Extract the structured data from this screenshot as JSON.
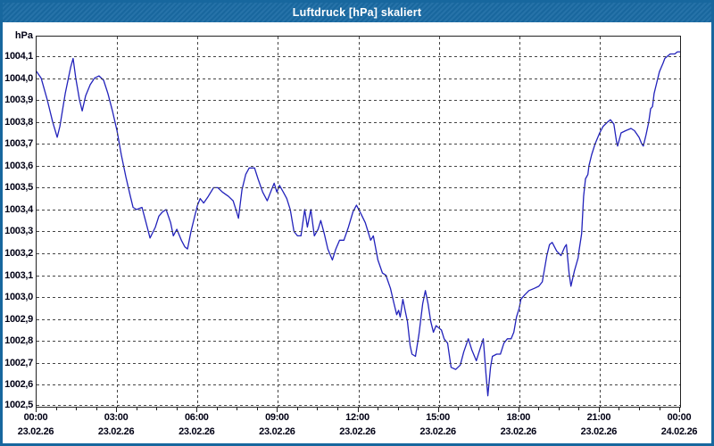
{
  "window": {
    "title": "Luftdruck [hPa] skaliert"
  },
  "colors": {
    "titlebar": "#1a6ba4",
    "window_border": "#17679e",
    "line": "#2222bb",
    "grid": "#444444",
    "text": "#000014"
  },
  "chart_data": {
    "type": "line",
    "title": "Luftdruck [hPa] skaliert",
    "ylabel": "hPa",
    "xlabel": "",
    "grid": true,
    "ylim": [
      1002.5,
      1004.19
    ],
    "xlim_hours": [
      0,
      24
    ],
    "y_ticks": [
      {
        "label": "1004,1",
        "value": 1004.1
      },
      {
        "label": "1004,0",
        "value": 1004.0
      },
      {
        "label": "1003,9",
        "value": 1003.9
      },
      {
        "label": "1003,8",
        "value": 1003.8
      },
      {
        "label": "1003,7",
        "value": 1003.7
      },
      {
        "label": "1003,6",
        "value": 1003.6
      },
      {
        "label": "1003,5",
        "value": 1003.5
      },
      {
        "label": "1003,4",
        "value": 1003.4
      },
      {
        "label": "1003,3",
        "value": 1003.3
      },
      {
        "label": "1003,2",
        "value": 1003.2
      },
      {
        "label": "1003,1",
        "value": 1003.1
      },
      {
        "label": "1003,0",
        "value": 1003.0
      },
      {
        "label": "1002,9",
        "value": 1002.9
      },
      {
        "label": "1002,8",
        "value": 1002.8
      },
      {
        "label": "1002,7",
        "value": 1002.7
      },
      {
        "label": "1002,6",
        "value": 1002.6
      },
      {
        "label": "1002,5",
        "value": 1002.5
      }
    ],
    "x_ticks": [
      {
        "time": "00:00",
        "date": "23.02.26",
        "hour": 0
      },
      {
        "time": "03:00",
        "date": "23.02.26",
        "hour": 3
      },
      {
        "time": "06:00",
        "date": "23.02.26",
        "hour": 6
      },
      {
        "time": "09:00",
        "date": "23.02.26",
        "hour": 9
      },
      {
        "time": "12:00",
        "date": "23.02.26",
        "hour": 12
      },
      {
        "time": "15:00",
        "date": "23.02.26",
        "hour": 15
      },
      {
        "time": "18:00",
        "date": "23.02.26",
        "hour": 18
      },
      {
        "time": "21:00",
        "date": "23.02.26",
        "hour": 21
      },
      {
        "time": "00:00",
        "date": "24.02.26",
        "hour": 24
      }
    ],
    "series": [
      {
        "name": "Luftdruck [hPa]",
        "color": "#2222bb",
        "points": [
          [
            0.0,
            1004.03
          ],
          [
            0.17,
            1004.0
          ],
          [
            0.4,
            1003.9
          ],
          [
            0.6,
            1003.8
          ],
          [
            0.77,
            1003.73
          ],
          [
            0.87,
            1003.78
          ],
          [
            1.07,
            1003.93
          ],
          [
            1.27,
            1004.05
          ],
          [
            1.36,
            1004.09
          ],
          [
            1.46,
            1004.0
          ],
          [
            1.6,
            1003.9
          ],
          [
            1.7,
            1003.85
          ],
          [
            1.83,
            1003.92
          ],
          [
            2.0,
            1003.97
          ],
          [
            2.16,
            1004.0
          ],
          [
            2.33,
            1004.01
          ],
          [
            2.5,
            1003.99
          ],
          [
            2.66,
            1003.93
          ],
          [
            2.83,
            1003.85
          ],
          [
            3.0,
            1003.76
          ],
          [
            3.16,
            1003.65
          ],
          [
            3.33,
            1003.55
          ],
          [
            3.5,
            1003.46
          ],
          [
            3.6,
            1003.41
          ],
          [
            3.73,
            1003.4
          ],
          [
            3.93,
            1003.41
          ],
          [
            4.06,
            1003.35
          ],
          [
            4.23,
            1003.27
          ],
          [
            4.43,
            1003.32
          ],
          [
            4.56,
            1003.37
          ],
          [
            4.7,
            1003.39
          ],
          [
            4.83,
            1003.4
          ],
          [
            5.0,
            1003.34
          ],
          [
            5.1,
            1003.28
          ],
          [
            5.23,
            1003.31
          ],
          [
            5.4,
            1003.26
          ],
          [
            5.53,
            1003.23
          ],
          [
            5.63,
            1003.22
          ],
          [
            5.76,
            1003.3
          ],
          [
            5.9,
            1003.37
          ],
          [
            6.0,
            1003.42
          ],
          [
            6.1,
            1003.45
          ],
          [
            6.23,
            1003.43
          ],
          [
            6.4,
            1003.46
          ],
          [
            6.6,
            1003.5
          ],
          [
            6.76,
            1003.5
          ],
          [
            6.93,
            1003.48
          ],
          [
            7.16,
            1003.46
          ],
          [
            7.33,
            1003.44
          ],
          [
            7.46,
            1003.39
          ],
          [
            7.53,
            1003.36
          ],
          [
            7.66,
            1003.49
          ],
          [
            7.8,
            1003.56
          ],
          [
            7.93,
            1003.59
          ],
          [
            8.13,
            1003.59
          ],
          [
            8.26,
            1003.54
          ],
          [
            8.43,
            1003.48
          ],
          [
            8.6,
            1003.44
          ],
          [
            8.76,
            1003.49
          ],
          [
            8.86,
            1003.52
          ],
          [
            8.96,
            1003.48
          ],
          [
            9.06,
            1003.51
          ],
          [
            9.2,
            1003.48
          ],
          [
            9.33,
            1003.45
          ],
          [
            9.46,
            1003.4
          ],
          [
            9.6,
            1003.3
          ],
          [
            9.73,
            1003.28
          ],
          [
            9.86,
            1003.28
          ],
          [
            10.0,
            1003.4
          ],
          [
            10.1,
            1003.32
          ],
          [
            10.23,
            1003.4
          ],
          [
            10.36,
            1003.28
          ],
          [
            10.5,
            1003.31
          ],
          [
            10.6,
            1003.35
          ],
          [
            10.73,
            1003.29
          ],
          [
            10.86,
            1003.22
          ],
          [
            11.03,
            1003.17
          ],
          [
            11.16,
            1003.22
          ],
          [
            11.3,
            1003.26
          ],
          [
            11.46,
            1003.26
          ],
          [
            11.63,
            1003.32
          ],
          [
            11.8,
            1003.39
          ],
          [
            11.93,
            1003.42
          ],
          [
            12.1,
            1003.38
          ],
          [
            12.26,
            1003.34
          ],
          [
            12.36,
            1003.3
          ],
          [
            12.46,
            1003.26
          ],
          [
            12.56,
            1003.28
          ],
          [
            12.73,
            1003.17
          ],
          [
            12.9,
            1003.11
          ],
          [
            13.03,
            1003.1
          ],
          [
            13.2,
            1003.04
          ],
          [
            13.33,
            1002.97
          ],
          [
            13.43,
            1002.92
          ],
          [
            13.5,
            1002.94
          ],
          [
            13.56,
            1002.91
          ],
          [
            13.66,
            1002.99
          ],
          [
            13.76,
            1002.93
          ],
          [
            13.83,
            1002.89
          ],
          [
            13.93,
            1002.78
          ],
          [
            14.0,
            1002.74
          ],
          [
            14.13,
            1002.73
          ],
          [
            14.26,
            1002.83
          ],
          [
            14.4,
            1002.97
          ],
          [
            14.5,
            1003.03
          ],
          [
            14.6,
            1002.97
          ],
          [
            14.7,
            1002.89
          ],
          [
            14.8,
            1002.84
          ],
          [
            14.9,
            1002.87
          ],
          [
            15.0,
            1002.86
          ],
          [
            15.1,
            1002.85
          ],
          [
            15.2,
            1002.81
          ],
          [
            15.33,
            1002.79
          ],
          [
            15.46,
            1002.68
          ],
          [
            15.63,
            1002.67
          ],
          [
            15.8,
            1002.69
          ],
          [
            15.93,
            1002.75
          ],
          [
            16.1,
            1002.81
          ],
          [
            16.23,
            1002.76
          ],
          [
            16.4,
            1002.71
          ],
          [
            16.53,
            1002.76
          ],
          [
            16.66,
            1002.81
          ],
          [
            16.76,
            1002.65
          ],
          [
            16.83,
            1002.55
          ],
          [
            16.93,
            1002.68
          ],
          [
            17.0,
            1002.73
          ],
          [
            17.16,
            1002.74
          ],
          [
            17.3,
            1002.74
          ],
          [
            17.43,
            1002.79
          ],
          [
            17.56,
            1002.81
          ],
          [
            17.7,
            1002.81
          ],
          [
            17.8,
            1002.84
          ],
          [
            17.9,
            1002.91
          ],
          [
            18.0,
            1002.95
          ],
          [
            18.06,
            1002.99
          ],
          [
            18.2,
            1003.01
          ],
          [
            18.36,
            1003.03
          ],
          [
            18.56,
            1003.04
          ],
          [
            18.73,
            1003.05
          ],
          [
            18.86,
            1003.07
          ],
          [
            18.96,
            1003.14
          ],
          [
            19.03,
            1003.19
          ],
          [
            19.13,
            1003.24
          ],
          [
            19.23,
            1003.25
          ],
          [
            19.4,
            1003.21
          ],
          [
            19.56,
            1003.19
          ],
          [
            19.7,
            1003.23
          ],
          [
            19.76,
            1003.24
          ],
          [
            19.86,
            1003.11
          ],
          [
            19.93,
            1003.05
          ],
          [
            20.06,
            1003.12
          ],
          [
            20.2,
            1003.18
          ],
          [
            20.23,
            1003.21
          ],
          [
            20.33,
            1003.29
          ],
          [
            20.4,
            1003.46
          ],
          [
            20.47,
            1003.54
          ],
          [
            20.56,
            1003.56
          ],
          [
            20.6,
            1003.6
          ],
          [
            20.7,
            1003.65
          ],
          [
            20.83,
            1003.7
          ],
          [
            21.0,
            1003.75
          ],
          [
            21.13,
            1003.78
          ],
          [
            21.3,
            1003.8
          ],
          [
            21.4,
            1003.81
          ],
          [
            21.53,
            1003.79
          ],
          [
            21.63,
            1003.71
          ],
          [
            21.67,
            1003.69
          ],
          [
            21.8,
            1003.75
          ],
          [
            21.97,
            1003.76
          ],
          [
            22.17,
            1003.77
          ],
          [
            22.3,
            1003.76
          ],
          [
            22.47,
            1003.73
          ],
          [
            22.57,
            1003.7
          ],
          [
            22.63,
            1003.69
          ],
          [
            22.73,
            1003.74
          ],
          [
            22.83,
            1003.8
          ],
          [
            22.9,
            1003.86
          ],
          [
            22.97,
            1003.87
          ],
          [
            23.03,
            1003.93
          ],
          [
            23.13,
            1003.98
          ],
          [
            23.23,
            1004.03
          ],
          [
            23.37,
            1004.07
          ],
          [
            23.43,
            1004.09
          ],
          [
            23.53,
            1004.1
          ],
          [
            23.63,
            1004.11
          ],
          [
            23.8,
            1004.11
          ],
          [
            23.9,
            1004.12
          ],
          [
            24.0,
            1004.12
          ]
        ]
      }
    ]
  }
}
